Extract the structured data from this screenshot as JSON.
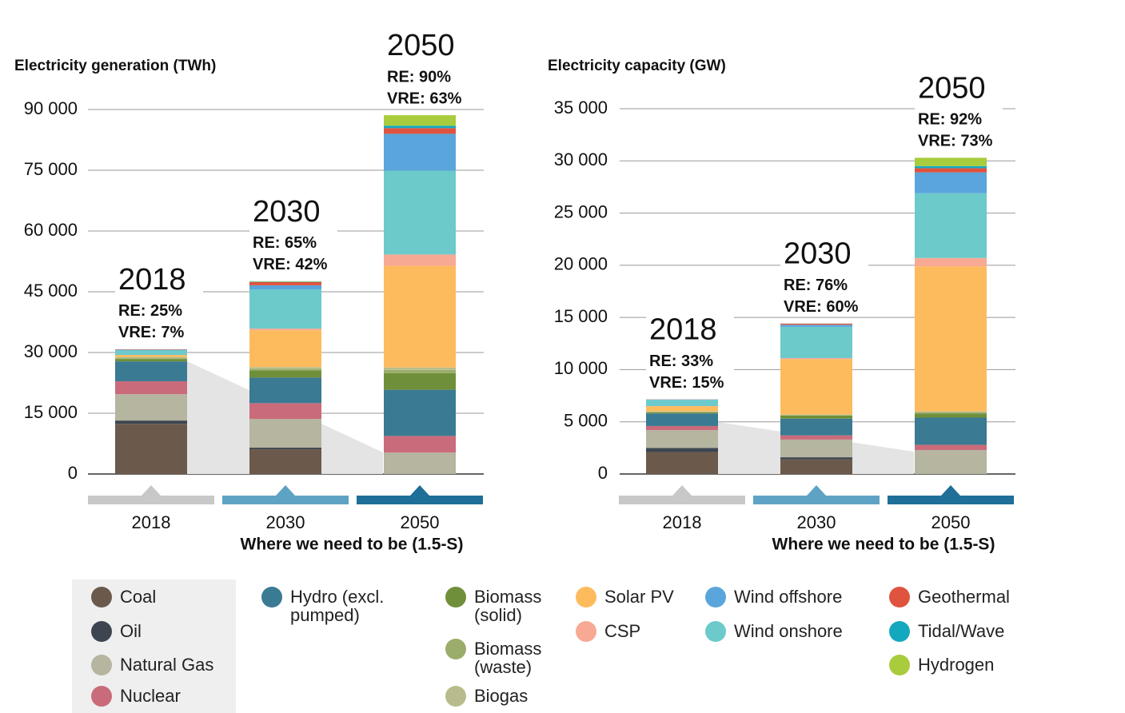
{
  "chart_data": [
    {
      "type": "stacked_bar",
      "title": "Electricity generation (TWh)",
      "x_label": "Where we need to be (1.5-S)",
      "categories": [
        "2018",
        "2030",
        "2050"
      ],
      "annotations": [
        {
          "year": "2018",
          "re": "RE: 25%",
          "vre": "VRE: 7%"
        },
        {
          "year": "2030",
          "re": "RE: 65%",
          "vre": "VRE: 42%"
        },
        {
          "year": "2050",
          "re": "RE: 90%",
          "vre": "VRE: 63%"
        }
      ],
      "ylim": [
        0,
        90000
      ],
      "yticks": [
        0,
        {
          "value": 15000,
          "label": "15 000"
        },
        {
          "value": 30000,
          "label": "30 000"
        },
        {
          "value": 45000,
          "label": "45 000"
        },
        {
          "value": 60000,
          "label": "60 000"
        },
        {
          "value": 75000,
          "label": "75 000"
        },
        {
          "value": 90000,
          "label": "90 000"
        }
      ],
      "grid": true,
      "series": [
        {
          "name": "Coal",
          "color": "#6b5a4c",
          "values": [
            12400,
            6100,
            0
          ]
        },
        {
          "name": "Oil",
          "color": "#3d4650",
          "values": [
            800,
            400,
            0
          ]
        },
        {
          "name": "Natural Gas",
          "color": "#b5b5a0",
          "values": [
            6500,
            7100,
            5300
          ]
        },
        {
          "name": "Nuclear",
          "color": "#c96b7a",
          "values": [
            3200,
            3900,
            4100
          ]
        },
        {
          "name": "Hydro (excl. pumped)",
          "color": "#3a7a93",
          "values": [
            4900,
            6300,
            11400
          ]
        },
        {
          "name": "Biomass (solid)",
          "color": "#6f8f3a",
          "values": [
            600,
            1800,
            4100
          ]
        },
        {
          "name": "Biomass (waste)",
          "color": "#9aad6a",
          "values": [
            200,
            400,
            800
          ]
        },
        {
          "name": "Biogas",
          "color": "#b8bc8c",
          "values": [
            300,
            400,
            600
          ]
        },
        {
          "name": "Solar PV",
          "color": "#fdbb5e",
          "values": [
            500,
            9100,
            25100
          ]
        },
        {
          "name": "CSP",
          "color": "#f7a994",
          "values": [
            10,
            400,
            2800
          ]
        },
        {
          "name": "Wind onshore",
          "color": "#6ccacb",
          "values": [
            1200,
            9700,
            20700
          ]
        },
        {
          "name": "Wind offshore",
          "color": "#5aa5db",
          "values": [
            100,
            1000,
            9100
          ]
        },
        {
          "name": "Geothermal",
          "color": "#e0533f",
          "values": [
            100,
            800,
            1400
          ]
        },
        {
          "name": "Tidal/Wave",
          "color": "#14a8bf",
          "values": [
            0,
            100,
            600
          ]
        },
        {
          "name": "Hydrogen",
          "color": "#a8cc3c",
          "values": [
            0,
            100,
            2600
          ]
        }
      ]
    },
    {
      "type": "stacked_bar",
      "title": "Electricity capacity (GW)",
      "x_label": "Where we need to be (1.5-S)",
      "categories": [
        "2018",
        "2030",
        "2050"
      ],
      "annotations": [
        {
          "year": "2018",
          "re": "RE: 33%",
          "vre": "VRE: 15%"
        },
        {
          "year": "2030",
          "re": "RE: 76%",
          "vre": "VRE: 60%"
        },
        {
          "year": "2050",
          "re": "RE: 92%",
          "vre": "VRE: 73%"
        }
      ],
      "ylim": [
        0,
        35000
      ],
      "yticks": [
        0,
        {
          "value": 5000,
          "label": "5 000"
        },
        {
          "value": 10000,
          "label": "10 000"
        },
        {
          "value": 15000,
          "label": "15 000"
        },
        {
          "value": 20000,
          "label": "20 000"
        },
        {
          "value": 25000,
          "label": "25 000"
        },
        {
          "value": 30000,
          "label": "30 000"
        },
        {
          "value": 35000,
          "label": "35 000"
        }
      ],
      "grid": true,
      "series": [
        {
          "name": "Coal",
          "color": "#6b5a4c",
          "values": [
            2100,
            1400,
            0
          ]
        },
        {
          "name": "Oil",
          "color": "#3d4650",
          "values": [
            400,
            200,
            0
          ]
        },
        {
          "name": "Natural Gas",
          "color": "#b5b5a0",
          "values": [
            1700,
            1700,
            2300
          ]
        },
        {
          "name": "Nuclear",
          "color": "#c96b7a",
          "values": [
            400,
            400,
            500
          ]
        },
        {
          "name": "Hydro (excl. pumped)",
          "color": "#3a7a93",
          "values": [
            1200,
            1600,
            2600
          ]
        },
        {
          "name": "Biomass (solid)",
          "color": "#6f8f3a",
          "values": [
            100,
            300,
            400
          ]
        },
        {
          "name": "Biomass (waste)",
          "color": "#9aad6a",
          "values": [
            50,
            50,
            100
          ]
        },
        {
          "name": "Biogas",
          "color": "#b8bc8c",
          "values": [
            50,
            50,
            100
          ]
        },
        {
          "name": "Solar PV",
          "color": "#fdbb5e",
          "values": [
            500,
            5300,
            13900
          ]
        },
        {
          "name": "CSP",
          "color": "#f7a994",
          "values": [
            10,
            100,
            800
          ]
        },
        {
          "name": "Wind onshore",
          "color": "#6ccacb",
          "values": [
            600,
            3000,
            6200
          ]
        },
        {
          "name": "Wind offshore",
          "color": "#5aa5db",
          "values": [
            30,
            200,
            2000
          ]
        },
        {
          "name": "Geothermal",
          "color": "#e0533f",
          "values": [
            15,
            100,
            400
          ]
        },
        {
          "name": "Tidal/Wave",
          "color": "#14a8bf",
          "values": [
            1,
            10,
            200
          ]
        },
        {
          "name": "Hydrogen",
          "color": "#a8cc3c",
          "values": [
            0,
            10,
            800
          ]
        }
      ]
    }
  ]
}
